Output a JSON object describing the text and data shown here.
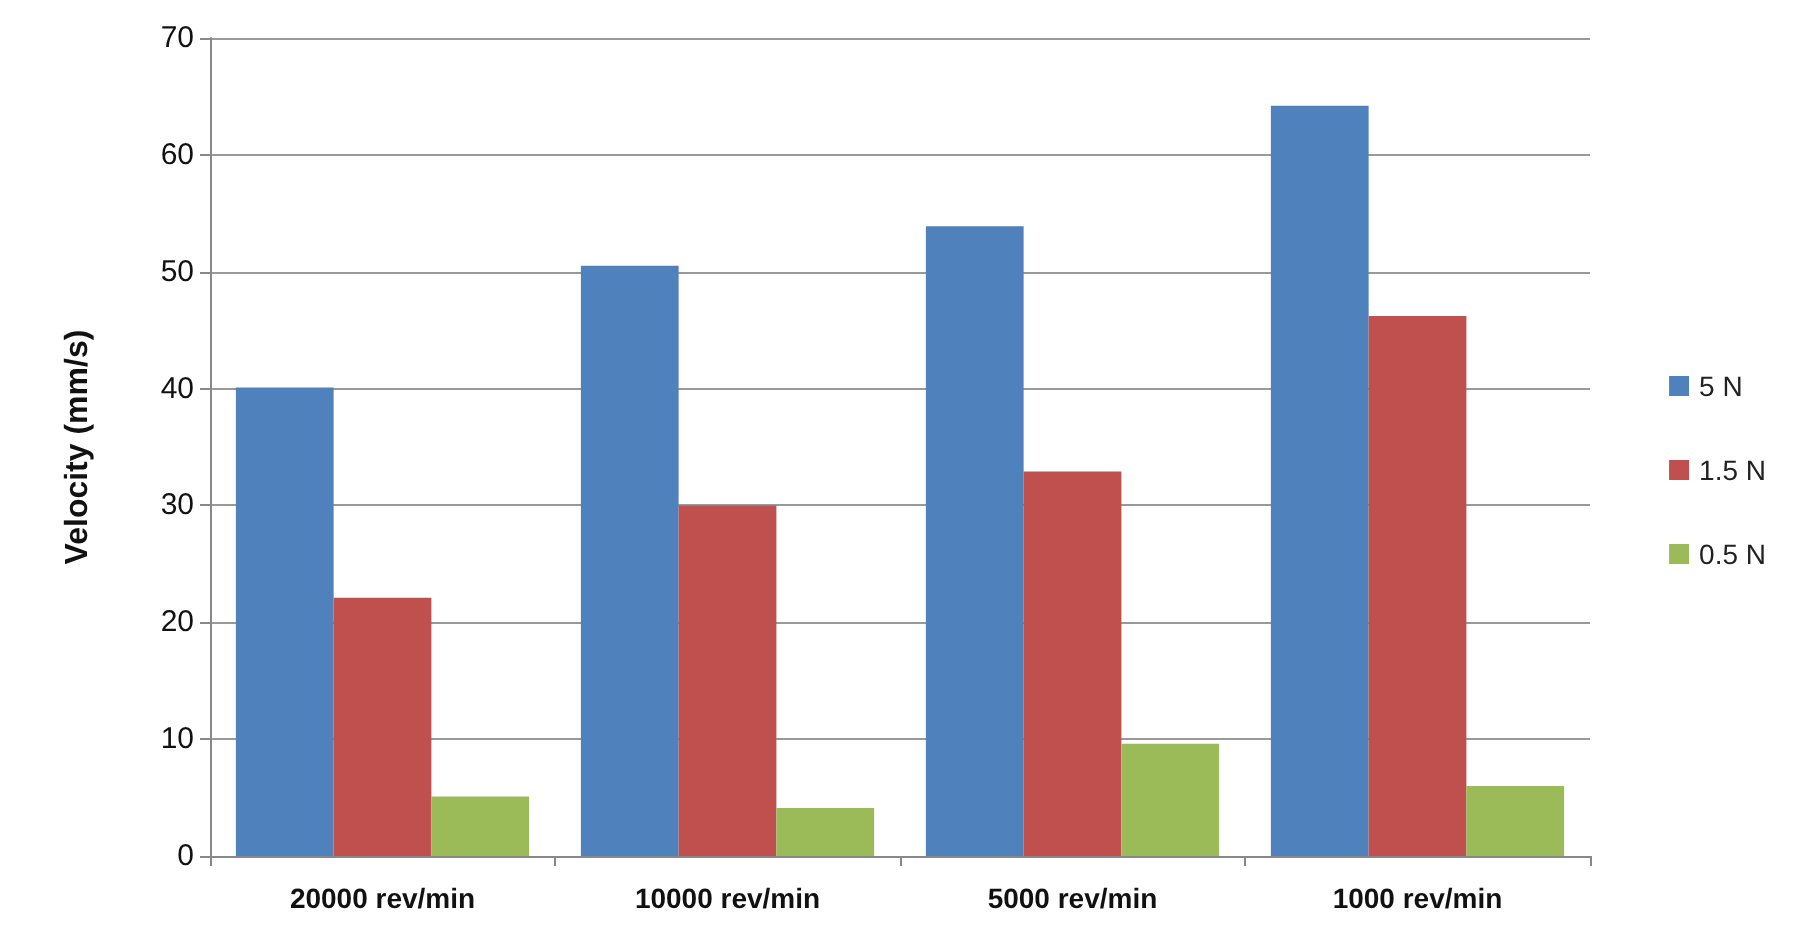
{
  "chart_data": {
    "type": "bar",
    "ylabel": "Velocity (mm/s)",
    "categories": [
      "20000 rev/min",
      "10000 rev/min",
      "5000 rev/min",
      "1000 rev/min"
    ],
    "series": [
      {
        "name": "5 N",
        "color": "#4f81bd",
        "values": [
          40.1,
          50.5,
          53.9,
          64.2
        ]
      },
      {
        "name": "1.5 N",
        "color": "#c0504d",
        "values": [
          22.1,
          30,
          32.9,
          46.2
        ]
      },
      {
        "name": "0.5 N",
        "color": "#9bbb59",
        "values": [
          5.1,
          4.1,
          9.6,
          6
        ]
      }
    ],
    "ylim": [
      0,
      70
    ],
    "yticks": [
      0,
      10,
      20,
      30,
      40,
      50,
      60,
      70
    ],
    "grid": "y",
    "legend": "right"
  }
}
